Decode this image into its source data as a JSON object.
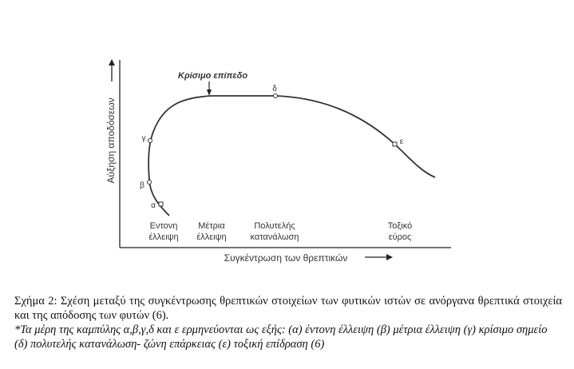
{
  "figure": {
    "y_axis_label": "Αύξηση αποδόσεων",
    "x_axis_label": "Συγκέντρωση των θρεπτικών",
    "critical_level": "Κρίσιμο επίπεδο",
    "point_labels": [
      "α",
      "β",
      "γ",
      "δ",
      "ε"
    ],
    "zone_labels": [
      [
        "Εντονη",
        "έλλειψη"
      ],
      [
        "Μέτρια",
        "έλλειψη"
      ],
      [
        "Πολυτελής",
        "κατανάλωση"
      ],
      [
        "Τοξικό",
        "εύρος"
      ]
    ]
  },
  "caption": {
    "text": "Σχήμα 2: Σχέση μεταξύ της συγκέντρωσης θρεπτικών στοιχείων των φυτικών ιστών σε ανόργανα θρεπτικά στοιχεία και της απόδοσης των φυτών (6).",
    "note": "*Τα μέρη της καμπύλης α,β,γ,δ και ε ερμηνεύονται ως εξής: (α) έντονη έλλειψη (β) μέτρια έλλειψη (γ) κρίσιμο σημείο (δ) πολυτελής κατανάλωση- ζώνη επάρκειας (ε) τοξική επίδραση (6)"
  }
}
